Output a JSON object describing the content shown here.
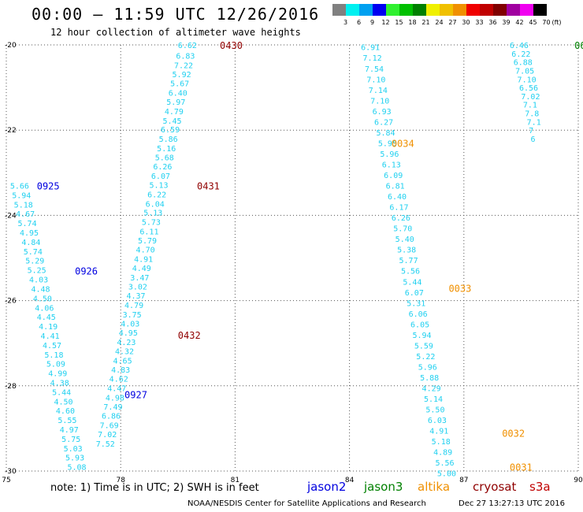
{
  "header": {
    "title": "00:00 — 11:59 UTC 12/26/2016",
    "subtitle": "12 hour collection of altimeter wave heights"
  },
  "legend": {
    "unit": "(ft)",
    "bins": [
      {
        "label": "3",
        "color": "#808080"
      },
      {
        "label": "6",
        "color": "#00f0f0"
      },
      {
        "label": "9",
        "color": "#00a0f0"
      },
      {
        "label": "12",
        "color": "#0000f0"
      },
      {
        "label": "15",
        "color": "#30f030"
      },
      {
        "label": "18",
        "color": "#00c000"
      },
      {
        "label": "21",
        "color": "#008000"
      },
      {
        "label": "24",
        "color": "#f0f000"
      },
      {
        "label": "27",
        "color": "#f0c000"
      },
      {
        "label": "30",
        "color": "#f09000"
      },
      {
        "label": "33",
        "color": "#f00000"
      },
      {
        "label": "36",
        "color": "#c00000"
      },
      {
        "label": "39",
        "color": "#800000"
      },
      {
        "label": "42",
        "color": "#a000a0"
      },
      {
        "label": "45",
        "color": "#f000f0"
      },
      {
        "label": "70",
        "color": "#000000"
      }
    ]
  },
  "map": {
    "lon_range": [
      75,
      90
    ],
    "lat_range": [
      -30,
      -20
    ],
    "x_ticks": [
      75,
      78,
      81,
      84,
      87,
      90
    ],
    "y_ticks": [
      -20,
      -22,
      -24,
      -26,
      -28,
      -30
    ],
    "grid": "dotted"
  },
  "colors": {
    "swh": "#20d0f0",
    "jason2": "#0000e0",
    "jason3": "#008000",
    "altika": "#f09000",
    "cryosat": "#900000",
    "s3a": "#c00000"
  },
  "tracks": [
    {
      "satellite": "cryosat",
      "times": [
        {
          "label": "0430",
          "lon": 80.6,
          "lat": -20.0
        },
        {
          "label": "0431",
          "lon": 80.0,
          "lat": -23.3
        },
        {
          "label": "0432",
          "lon": 79.5,
          "lat": -26.8
        }
      ],
      "values": [
        [
          "6.62",
          79.5,
          -20.0
        ],
        [
          "6.83",
          79.45,
          -20.25
        ],
        [
          "7.22",
          79.4,
          -20.47
        ],
        [
          "5.92",
          79.35,
          -20.68
        ],
        [
          "5.67",
          79.3,
          -20.9
        ],
        [
          "6.40",
          79.25,
          -21.12
        ],
        [
          "5.97",
          79.2,
          -21.33
        ],
        [
          "4.79",
          79.15,
          -21.55
        ],
        [
          "5.45",
          79.1,
          -21.77
        ],
        [
          "6.59",
          79.05,
          -21.98
        ],
        [
          "5.86",
          79.0,
          -22.2
        ],
        [
          "5.16",
          78.95,
          -22.42
        ],
        [
          "5.68",
          78.9,
          -22.63
        ],
        [
          "6.26",
          78.85,
          -22.85
        ],
        [
          "6.07",
          78.8,
          -23.07
        ],
        [
          "5.13",
          78.75,
          -23.28
        ],
        [
          "6.22",
          78.7,
          -23.5
        ],
        [
          "6.04",
          78.65,
          -23.72
        ],
        [
          "5.13",
          78.6,
          -23.93
        ],
        [
          "5.73",
          78.55,
          -24.15
        ],
        [
          "6.11",
          78.5,
          -24.37
        ],
        [
          "5.79",
          78.45,
          -24.58
        ],
        [
          "4.70",
          78.4,
          -24.8
        ],
        [
          "4.91",
          78.35,
          -25.02
        ],
        [
          "4.49",
          78.3,
          -25.23
        ],
        [
          "3.47",
          78.25,
          -25.45
        ],
        [
          "3.02",
          78.2,
          -25.67
        ],
        [
          "4.37",
          78.15,
          -25.88
        ],
        [
          "4.79",
          78.1,
          -26.1
        ],
        [
          "3.75",
          78.05,
          -26.32
        ],
        [
          "4.03",
          78.0,
          -26.53
        ],
        [
          "4.95",
          77.95,
          -26.75
        ],
        [
          "4.23",
          77.9,
          -26.97
        ],
        [
          "4.32",
          77.85,
          -27.18
        ],
        [
          "4.65",
          77.8,
          -27.4
        ],
        [
          "4.83",
          77.75,
          -27.62
        ],
        [
          "4.62",
          77.7,
          -27.83
        ],
        [
          "4.47",
          77.65,
          -28.05
        ],
        [
          "4.98",
          77.6,
          -28.27
        ],
        [
          "7.49",
          77.55,
          -28.48
        ],
        [
          "6.86",
          77.5,
          -28.7
        ],
        [
          "7.69",
          77.45,
          -28.92
        ],
        [
          "7.02",
          77.4,
          -29.13
        ],
        [
          "7.52",
          77.35,
          -29.35
        ]
      ]
    },
    {
      "satellite": "jason2",
      "times": [
        {
          "label": "0925",
          "lon": 75.8,
          "lat": -23.3
        },
        {
          "label": "0926",
          "lon": 76.8,
          "lat": -25.3
        },
        {
          "label": "0927",
          "lon": 78.1,
          "lat": -28.2
        }
      ],
      "values": [
        [
          "5.66",
          75.1,
          -23.3
        ],
        [
          "5.94",
          75.15,
          -23.52
        ],
        [
          "5.18",
          75.2,
          -23.74
        ],
        [
          "4.67",
          75.25,
          -23.96
        ],
        [
          "5.74",
          75.3,
          -24.18
        ],
        [
          "4.95",
          75.35,
          -24.4
        ],
        [
          "4.84",
          75.4,
          -24.62
        ],
        [
          "5.74",
          75.45,
          -24.84
        ],
        [
          "5.29",
          75.5,
          -25.06
        ],
        [
          "5.25",
          75.55,
          -25.28
        ],
        [
          "4.03",
          75.6,
          -25.5
        ],
        [
          "4.48",
          75.65,
          -25.72
        ],
        [
          "4.50",
          75.7,
          -25.94
        ],
        [
          "4.06",
          75.75,
          -26.16
        ],
        [
          "4.45",
          75.8,
          -26.38
        ],
        [
          "4.19",
          75.85,
          -26.6
        ],
        [
          "4.41",
          75.9,
          -26.82
        ],
        [
          "4.57",
          75.95,
          -27.04
        ],
        [
          "5.18",
          76.0,
          -27.26
        ],
        [
          "5.09",
          76.05,
          -27.48
        ],
        [
          "4.99",
          76.1,
          -27.7
        ],
        [
          "4.38",
          76.15,
          -27.92
        ],
        [
          "5.44",
          76.2,
          -28.14
        ],
        [
          "4.50",
          76.25,
          -28.36
        ],
        [
          "4.60",
          76.3,
          -28.58
        ],
        [
          "5.55",
          76.35,
          -28.8
        ],
        [
          "4.97",
          76.4,
          -29.02
        ],
        [
          "5.75",
          76.45,
          -29.24
        ],
        [
          "5.03",
          76.5,
          -29.46
        ],
        [
          "5.93",
          76.55,
          -29.68
        ],
        [
          "5.08",
          76.6,
          -29.9
        ]
      ]
    },
    {
      "satellite": "altika",
      "times": [
        {
          "label": "0034",
          "lon": 85.1,
          "lat": -22.3
        },
        {
          "label": "0033",
          "lon": 86.6,
          "lat": -25.7
        },
        {
          "label": "0032",
          "lon": 88.0,
          "lat": -29.1
        },
        {
          "label": "0031",
          "lon": 88.2,
          "lat": -29.9
        }
      ],
      "values": [
        [
          "6.91",
          84.3,
          -20.05
        ],
        [
          "7.12",
          84.35,
          -20.3
        ],
        [
          "7.54",
          84.4,
          -20.55
        ],
        [
          "7.10",
          84.45,
          -20.8
        ],
        [
          "7.14",
          84.5,
          -21.05
        ],
        [
          "7.10",
          84.55,
          -21.3
        ],
        [
          "6.93",
          84.6,
          -21.55
        ],
        [
          "6.27",
          84.65,
          -21.8
        ],
        [
          "5.84",
          84.7,
          -22.05
        ],
        [
          "5.95",
          84.75,
          -22.3
        ],
        [
          "5.96",
          84.8,
          -22.55
        ],
        [
          "6.13",
          84.85,
          -22.8
        ],
        [
          "6.09",
          84.9,
          -23.05
        ],
        [
          "6.81",
          84.95,
          -23.3
        ],
        [
          "6.40",
          85.0,
          -23.55
        ],
        [
          "6.17",
          85.05,
          -23.8
        ],
        [
          "6.26",
          85.1,
          -24.05
        ],
        [
          "5.70",
          85.15,
          -24.3
        ],
        [
          "5.40",
          85.2,
          -24.55
        ],
        [
          "5.38",
          85.25,
          -24.8
        ],
        [
          "5.77",
          85.3,
          -25.05
        ],
        [
          "5.56",
          85.35,
          -25.3
        ],
        [
          "5.44",
          85.4,
          -25.55
        ],
        [
          "6.07",
          85.45,
          -25.8
        ],
        [
          "5.31",
          85.5,
          -26.05
        ],
        [
          "6.06",
          85.55,
          -26.3
        ],
        [
          "6.05",
          85.6,
          -26.55
        ],
        [
          "5.94",
          85.65,
          -26.8
        ],
        [
          "5.59",
          85.7,
          -27.05
        ],
        [
          "5.22",
          85.75,
          -27.3
        ],
        [
          "5.96",
          85.8,
          -27.55
        ],
        [
          "5.88",
          85.85,
          -27.8
        ],
        [
          "4.29",
          85.9,
          -28.05
        ],
        [
          "5.14",
          85.95,
          -28.3
        ],
        [
          "5.50",
          86.0,
          -28.55
        ],
        [
          "6.03",
          86.05,
          -28.8
        ],
        [
          "4.91",
          86.1,
          -29.05
        ],
        [
          "5.18",
          86.15,
          -29.3
        ],
        [
          "4.89",
          86.2,
          -29.55
        ],
        [
          "5.56",
          86.25,
          -29.8
        ],
        [
          "5.00",
          86.3,
          -30.05
        ]
      ]
    },
    {
      "satellite": "jason3",
      "times": [
        {
          "label": "06",
          "lon": 89.9,
          "lat": -20.0
        }
      ],
      "values": [
        [
          "6.46",
          88.2,
          -20.0
        ],
        [
          "6.22",
          88.25,
          -20.2
        ],
        [
          "6.88",
          88.3,
          -20.4
        ],
        [
          "7.05",
          88.35,
          -20.6
        ],
        [
          "7.10",
          88.4,
          -20.8
        ],
        [
          "6.56",
          88.45,
          -21.0
        ],
        [
          "7.02",
          88.5,
          -21.2
        ],
        [
          "7.1",
          88.55,
          -21.4
        ],
        [
          "7.8",
          88.6,
          -21.6
        ],
        [
          "7.1",
          88.65,
          -21.8
        ],
        [
          "7",
          88.7,
          -22.0
        ],
        [
          "6",
          88.75,
          -22.2
        ]
      ]
    }
  ],
  "footer": {
    "note": "note: 1) Time is in UTC; 2) SWH is in feet",
    "satellites": [
      "jason2",
      "jason3",
      "altika",
      "cryosat",
      "s3a"
    ],
    "credit": "NOAA/NESDIS Center for Satellite Applications and Research",
    "timestamp": "Dec 27 13:27:13 UTC 2016"
  }
}
